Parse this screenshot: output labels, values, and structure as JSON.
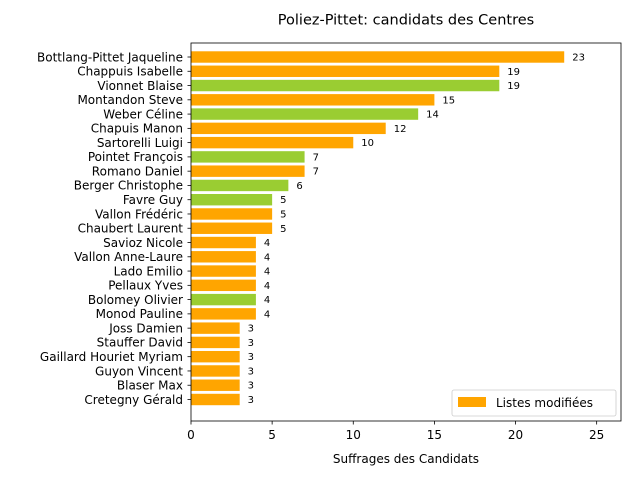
{
  "chart_data": {
    "type": "bar",
    "orientation": "horizontal",
    "title": "Poliez-Pittet: candidats des Centres",
    "xlabel": "Suffrages des Candidats",
    "ylabel": "",
    "xlim": [
      0,
      26.5
    ],
    "xticks": [
      0,
      5,
      10,
      15,
      20,
      25
    ],
    "grid": false,
    "legend": {
      "position": "lower right",
      "entries": [
        {
          "label": "Listes modifiées",
          "color": "#FFA500"
        }
      ]
    },
    "colors": {
      "orange": "#FFA500",
      "green": "#9ACD32"
    },
    "categories": [
      "Bottlang-Pittet Jaqueline",
      "Chappuis Isabelle",
      "Vionnet Blaise",
      "Montandon Steve",
      "Weber Céline",
      "Chapuis Manon",
      "Sartorelli Luigi",
      "Pointet François",
      "Romano Daniel",
      "Berger Christophe",
      "Favre Guy",
      "Vallon Frédéric",
      "Chaubert Laurent",
      "Savioz Nicole",
      "Vallon Anne-Laure",
      "Lado Emilio",
      "Pellaux Yves",
      "Bolomey Olivier",
      "Monod Pauline",
      "Joss Damien",
      "Stauffer David",
      "Gaillard Houriet Myriam",
      "Guyon Vincent",
      "Blaser Max",
      "Cretegny Gérald"
    ],
    "values": [
      23,
      19,
      19,
      15,
      14,
      12,
      10,
      7,
      7,
      6,
      5,
      5,
      5,
      4,
      4,
      4,
      4,
      4,
      4,
      3,
      3,
      3,
      3,
      3,
      3
    ],
    "bar_colors": [
      "orange",
      "orange",
      "green",
      "orange",
      "green",
      "orange",
      "orange",
      "green",
      "orange",
      "green",
      "green",
      "orange",
      "orange",
      "orange",
      "orange",
      "orange",
      "orange",
      "green",
      "orange",
      "orange",
      "orange",
      "orange",
      "orange",
      "orange",
      "orange"
    ]
  }
}
